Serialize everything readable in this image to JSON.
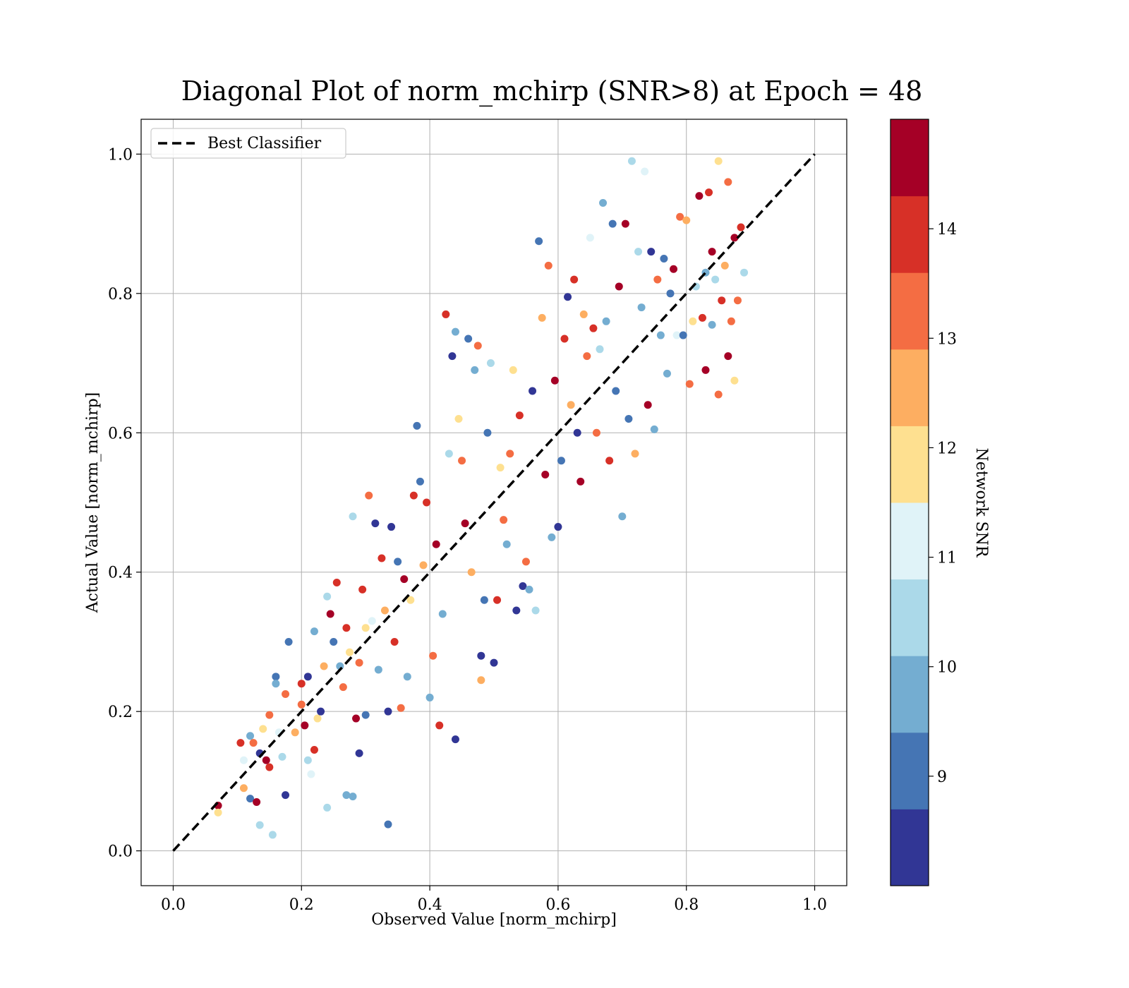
{
  "chart_data": {
    "type": "scatter",
    "title": "Diagonal Plot of norm_mchirp (SNR>8) at Epoch = 48",
    "xlabel": "Observed Value [norm_mchirp]",
    "ylabel": "Actual Value [norm_mchirp]",
    "xlim": [
      -0.05,
      1.05
    ],
    "ylim": [
      -0.05,
      1.05
    ],
    "x_ticks": [
      "0.0",
      "0.2",
      "0.4",
      "0.6",
      "0.8",
      "1.0"
    ],
    "y_ticks": [
      "0.0",
      "0.2",
      "0.4",
      "0.6",
      "0.8",
      "1.0"
    ],
    "grid": true,
    "legend": {
      "position": "upper-left",
      "entries": [
        "Best Classifier"
      ]
    },
    "reference_line": {
      "name": "Best Classifier",
      "x": [
        0,
        1
      ],
      "y": [
        0,
        1
      ],
      "style": "dashed",
      "color": "#000000"
    },
    "colorbar": {
      "label": "Network SNR",
      "range": [
        8,
        15
      ],
      "ticks": [
        "9",
        "10",
        "11",
        "12",
        "13",
        "14"
      ],
      "colormap": "RdYlBu_r",
      "colors": [
        "#313695",
        "#4575b4",
        "#74add1",
        "#abd9e9",
        "#e0f3f8",
        "#fee090",
        "#fdae61",
        "#f46d43",
        "#d73027",
        "#a50026"
      ]
    },
    "points": [
      [
        0.07,
        0.065,
        14.6
      ],
      [
        0.07,
        0.055,
        12
      ],
      [
        0.105,
        0.155,
        14
      ],
      [
        0.11,
        0.13,
        11
      ],
      [
        0.12,
        0.075,
        9
      ],
      [
        0.13,
        0.07,
        14.5
      ],
      [
        0.135,
        0.037,
        10.5
      ],
      [
        0.155,
        0.023,
        10.5
      ],
      [
        0.175,
        0.08,
        8.5
      ],
      [
        0.11,
        0.09,
        12.5
      ],
      [
        0.12,
        0.165,
        10
      ],
      [
        0.125,
        0.155,
        13
      ],
      [
        0.135,
        0.14,
        8.5
      ],
      [
        0.14,
        0.175,
        12
      ],
      [
        0.145,
        0.13,
        14.5
      ],
      [
        0.15,
        0.12,
        14
      ],
      [
        0.15,
        0.195,
        13
      ],
      [
        0.16,
        0.25,
        9
      ],
      [
        0.16,
        0.24,
        10
      ],
      [
        0.165,
        0.17,
        11
      ],
      [
        0.17,
        0.135,
        10.5
      ],
      [
        0.175,
        0.225,
        13
      ],
      [
        0.18,
        0.3,
        9
      ],
      [
        0.19,
        0.17,
        12.5
      ],
      [
        0.2,
        0.24,
        14
      ],
      [
        0.2,
        0.21,
        13
      ],
      [
        0.205,
        0.18,
        14.5
      ],
      [
        0.21,
        0.25,
        8.5
      ],
      [
        0.21,
        0.13,
        10.5
      ],
      [
        0.215,
        0.11,
        11
      ],
      [
        0.22,
        0.315,
        10
      ],
      [
        0.22,
        0.145,
        14
      ],
      [
        0.225,
        0.19,
        12
      ],
      [
        0.23,
        0.2,
        8.5
      ],
      [
        0.235,
        0.265,
        12.5
      ],
      [
        0.24,
        0.062,
        10.5
      ],
      [
        0.24,
        0.365,
        10.5
      ],
      [
        0.245,
        0.34,
        14.5
      ],
      [
        0.25,
        0.3,
        9
      ],
      [
        0.255,
        0.385,
        14
      ],
      [
        0.26,
        0.265,
        10
      ],
      [
        0.265,
        0.235,
        13
      ],
      [
        0.27,
        0.08,
        10
      ],
      [
        0.27,
        0.32,
        14
      ],
      [
        0.275,
        0.285,
        12
      ],
      [
        0.28,
        0.078,
        9.5
      ],
      [
        0.28,
        0.48,
        10.5
      ],
      [
        0.285,
        0.19,
        14.5
      ],
      [
        0.29,
        0.14,
        8.5
      ],
      [
        0.29,
        0.27,
        13.5
      ],
      [
        0.295,
        0.375,
        14
      ],
      [
        0.3,
        0.195,
        9
      ],
      [
        0.3,
        0.32,
        12
      ],
      [
        0.305,
        0.51,
        13
      ],
      [
        0.31,
        0.33,
        11
      ],
      [
        0.315,
        0.47,
        8.5
      ],
      [
        0.32,
        0.26,
        10
      ],
      [
        0.325,
        0.42,
        14
      ],
      [
        0.33,
        0.345,
        12.5
      ],
      [
        0.335,
        0.2,
        8.5
      ],
      [
        0.335,
        0.038,
        9
      ],
      [
        0.34,
        0.465,
        8.5
      ],
      [
        0.345,
        0.3,
        14
      ],
      [
        0.35,
        0.415,
        9
      ],
      [
        0.355,
        0.205,
        13
      ],
      [
        0.36,
        0.39,
        14.5
      ],
      [
        0.365,
        0.25,
        10
      ],
      [
        0.37,
        0.36,
        12
      ],
      [
        0.375,
        0.51,
        14
      ],
      [
        0.38,
        0.61,
        9
      ],
      [
        0.385,
        0.53,
        9
      ],
      [
        0.39,
        0.41,
        12.5
      ],
      [
        0.395,
        0.5,
        14
      ],
      [
        0.4,
        0.22,
        9.5
      ],
      [
        0.405,
        0.28,
        13
      ],
      [
        0.41,
        0.44,
        14.5
      ],
      [
        0.415,
        0.18,
        14
      ],
      [
        0.42,
        0.34,
        9.5
      ],
      [
        0.425,
        0.77,
        14
      ],
      [
        0.43,
        0.57,
        10.5
      ],
      [
        0.435,
        0.71,
        8.5
      ],
      [
        0.44,
        0.16,
        8.5
      ],
      [
        0.44,
        0.745,
        9.5
      ],
      [
        0.445,
        0.62,
        12
      ],
      [
        0.45,
        0.56,
        13
      ],
      [
        0.455,
        0.47,
        14.5
      ],
      [
        0.46,
        0.735,
        9
      ],
      [
        0.465,
        0.4,
        12.5
      ],
      [
        0.47,
        0.69,
        10
      ],
      [
        0.475,
        0.725,
        13
      ],
      [
        0.48,
        0.28,
        8.5
      ],
      [
        0.48,
        0.245,
        12.5
      ],
      [
        0.485,
        0.36,
        9
      ],
      [
        0.49,
        0.6,
        9
      ],
      [
        0.495,
        0.7,
        10.5
      ],
      [
        0.5,
        0.27,
        8.5
      ],
      [
        0.505,
        0.36,
        14
      ],
      [
        0.51,
        0.55,
        12
      ],
      [
        0.515,
        0.475,
        13
      ],
      [
        0.52,
        0.44,
        10
      ],
      [
        0.525,
        0.57,
        13.5
      ],
      [
        0.53,
        0.69,
        12
      ],
      [
        0.535,
        0.345,
        8.5
      ],
      [
        0.54,
        0.625,
        14
      ],
      [
        0.545,
        0.38,
        8.5
      ],
      [
        0.55,
        0.415,
        13.5
      ],
      [
        0.555,
        0.375,
        10
      ],
      [
        0.56,
        0.66,
        8.5
      ],
      [
        0.565,
        0.345,
        10.5
      ],
      [
        0.57,
        0.875,
        9
      ],
      [
        0.575,
        0.765,
        12.5
      ],
      [
        0.58,
        0.54,
        14.5
      ],
      [
        0.585,
        0.84,
        13
      ],
      [
        0.59,
        0.45,
        10
      ],
      [
        0.595,
        0.675,
        14.5
      ],
      [
        0.6,
        0.465,
        8.5
      ],
      [
        0.605,
        0.56,
        9
      ],
      [
        0.61,
        0.735,
        14
      ],
      [
        0.615,
        0.795,
        8.5
      ],
      [
        0.62,
        0.64,
        12.5
      ],
      [
        0.625,
        0.82,
        14
      ],
      [
        0.63,
        0.6,
        8.5
      ],
      [
        0.635,
        0.53,
        14.5
      ],
      [
        0.64,
        0.77,
        12.5
      ],
      [
        0.645,
        0.71,
        13
      ],
      [
        0.65,
        0.88,
        11
      ],
      [
        0.655,
        0.75,
        14
      ],
      [
        0.66,
        0.6,
        13
      ],
      [
        0.665,
        0.72,
        10.5
      ],
      [
        0.67,
        0.93,
        9.5
      ],
      [
        0.675,
        0.76,
        10
      ],
      [
        0.68,
        0.56,
        14
      ],
      [
        0.685,
        0.9,
        9
      ],
      [
        0.69,
        0.66,
        9
      ],
      [
        0.695,
        0.81,
        14.5
      ],
      [
        0.7,
        0.48,
        9.5
      ],
      [
        0.705,
        0.9,
        14.5
      ],
      [
        0.71,
        0.62,
        9
      ],
      [
        0.715,
        0.99,
        10.5
      ],
      [
        0.72,
        0.57,
        12.5
      ],
      [
        0.725,
        0.86,
        10.5
      ],
      [
        0.73,
        0.78,
        9.5
      ],
      [
        0.735,
        0.975,
        11
      ],
      [
        0.74,
        0.64,
        14.5
      ],
      [
        0.745,
        0.86,
        8.5
      ],
      [
        0.75,
        0.605,
        10
      ],
      [
        0.755,
        0.82,
        13.5
      ],
      [
        0.76,
        0.74,
        10
      ],
      [
        0.765,
        0.85,
        9
      ],
      [
        0.77,
        0.685,
        9.5
      ],
      [
        0.775,
        0.8,
        9
      ],
      [
        0.78,
        0.835,
        14.5
      ],
      [
        0.785,
        0.74,
        11
      ],
      [
        0.79,
        0.91,
        13.5
      ],
      [
        0.795,
        0.74,
        9
      ],
      [
        0.8,
        0.905,
        12.5
      ],
      [
        0.805,
        0.67,
        13.5
      ],
      [
        0.81,
        0.76,
        12
      ],
      [
        0.815,
        0.81,
        10.5
      ],
      [
        0.82,
        0.94,
        14.5
      ],
      [
        0.825,
        0.765,
        14
      ],
      [
        0.83,
        0.83,
        10
      ],
      [
        0.835,
        0.945,
        14
      ],
      [
        0.84,
        0.86,
        14.5
      ],
      [
        0.845,
        0.82,
        10.5
      ],
      [
        0.85,
        0.99,
        12
      ],
      [
        0.855,
        0.79,
        14
      ],
      [
        0.86,
        0.84,
        12.5
      ],
      [
        0.865,
        0.96,
        13
      ],
      [
        0.87,
        0.76,
        13
      ],
      [
        0.875,
        0.88,
        14.5
      ],
      [
        0.88,
        0.79,
        13.5
      ],
      [
        0.885,
        0.895,
        14
      ],
      [
        0.89,
        0.83,
        10.5
      ],
      [
        0.875,
        0.675,
        12
      ],
      [
        0.85,
        0.655,
        13
      ],
      [
        0.83,
        0.69,
        14.5
      ],
      [
        0.865,
        0.71,
        14.5
      ],
      [
        0.84,
        0.755,
        9.5
      ]
    ]
  }
}
